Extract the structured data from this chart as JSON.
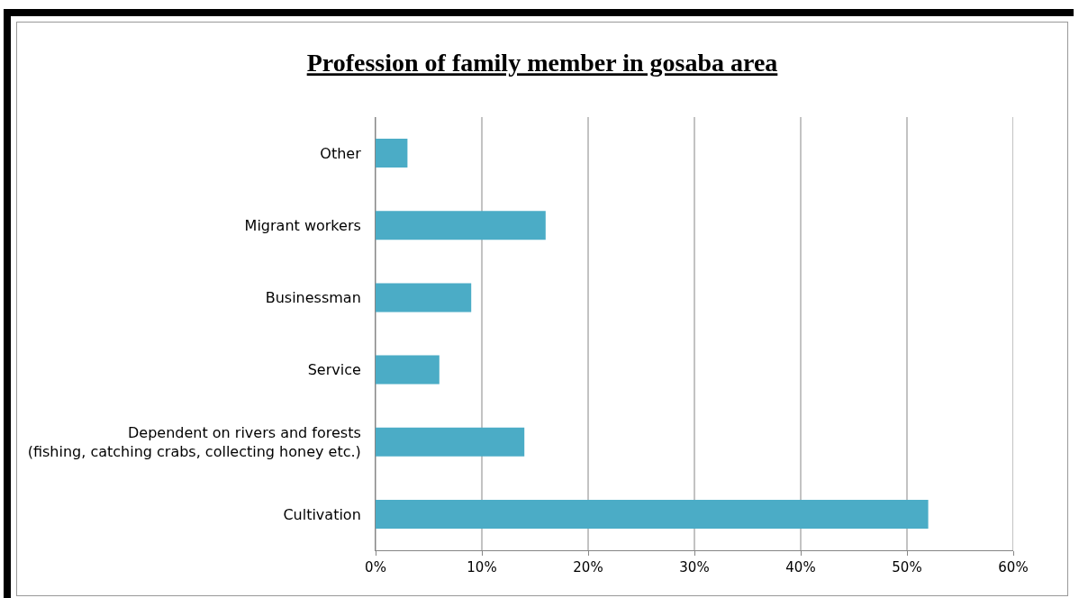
{
  "chart_data": {
    "type": "bar",
    "orientation": "horizontal",
    "title": "Profession of family member in gosaba area",
    "categories": [
      "Other",
      "Migrant workers",
      "Businessman",
      "Service",
      "Dependent on rivers and forests\n(fishing, catching crabs, collecting honey etc.)",
      "Cultivation"
    ],
    "values": [
      3,
      16,
      9,
      6,
      14,
      52
    ],
    "color": "#4bacc6",
    "xlim": [
      0,
      60
    ],
    "xticks": [
      {
        "value": 0,
        "label": "0%"
      },
      {
        "value": 10,
        "label": "10%"
      },
      {
        "value": 20,
        "label": "20%"
      },
      {
        "value": 30,
        "label": "30%"
      },
      {
        "value": 40,
        "label": "40%"
      },
      {
        "value": 50,
        "label": "50%"
      },
      {
        "value": 60,
        "label": "60%"
      }
    ],
    "grid": "x"
  }
}
